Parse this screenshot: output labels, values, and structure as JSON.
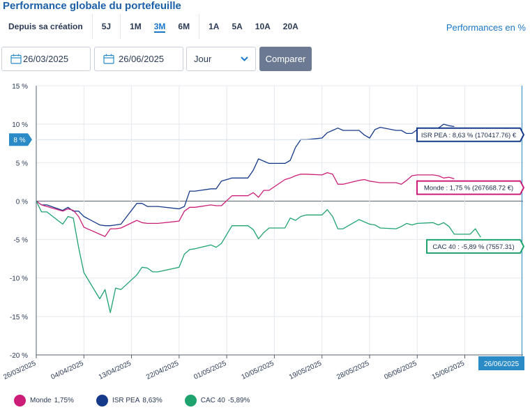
{
  "title": "Performance globale du portefeuille",
  "periods": [
    {
      "label": "Depuis sa création",
      "group": 0
    },
    {
      "label": "5J",
      "group": 1
    },
    {
      "label": "1M",
      "group": 2
    },
    {
      "label": "3M",
      "group": 2,
      "active": true
    },
    {
      "label": "6M",
      "group": 2
    },
    {
      "label": "1A",
      "group": 3
    },
    {
      "label": "5A",
      "group": 3
    },
    {
      "label": "10A",
      "group": 3
    },
    {
      "label": "20A",
      "group": 3
    }
  ],
  "perf_unit": "Performances en %",
  "date_start": "26/03/2025",
  "date_end": "26/06/2025",
  "granularity": "Jour",
  "compare_label": "Comparer",
  "hover_y_label": "8 %",
  "hover_x_label": "26/06/2025",
  "colors": {
    "monde": "#cc1e79",
    "isr": "#163a8a",
    "cac": "#1ea36f",
    "accent": "#2a8bc7"
  },
  "legend": [
    {
      "name": "Monde",
      "value": "1,75%",
      "color": "#cc1e79"
    },
    {
      "name": "ISR PEA",
      "value": "8,63%",
      "color": "#163a8a"
    },
    {
      "name": "CAC 40",
      "value": "-5,89%",
      "color": "#1ea36f"
    }
  ],
  "chart_data": {
    "type": "line",
    "ylim": [
      -20,
      15
    ],
    "yticks": [
      15,
      10,
      5,
      0,
      -5,
      -10,
      -15,
      -20
    ],
    "ytick_labels": [
      "15 %",
      "10 %",
      "5 %",
      "0 %",
      "-5 %",
      "-10 %",
      "-15 %",
      "-20 %"
    ],
    "xlim": [
      "2025-03-26",
      "2025-06-26"
    ],
    "xticks": [
      "2025-03-26",
      "2025-04-04",
      "2025-04-13",
      "2025-04-22",
      "2025-05-01",
      "2025-05-10",
      "2025-05-19",
      "2025-05-28",
      "2025-06-06",
      "2025-06-15"
    ],
    "xtick_labels": [
      "26/03/2025",
      "04/04/2025",
      "13/04/2025",
      "22/04/2025",
      "01/05/2025",
      "10/05/2025",
      "19/05/2025",
      "28/05/2025",
      "06/06/2025",
      "15/06/2025"
    ],
    "series": [
      {
        "name": "ISR PEA",
        "color": "#163a8a",
        "label": "ISR PEA : 8,63 % (170417.76) €",
        "label_value": 8.63,
        "dates": [
          "2025-03-26",
          "2025-03-27",
          "2025-03-28",
          "2025-03-31",
          "2025-04-01",
          "2025-04-02",
          "2025-04-03",
          "2025-04-04",
          "2025-04-07",
          "2025-04-08",
          "2025-04-09",
          "2025-04-10",
          "2025-04-11",
          "2025-04-14",
          "2025-04-15",
          "2025-04-16",
          "2025-04-17",
          "2025-04-18",
          "2025-04-22",
          "2025-04-23",
          "2025-04-24",
          "2025-04-25",
          "2025-04-28",
          "2025-04-29",
          "2025-04-30",
          "2025-05-02",
          "2025-05-05",
          "2025-05-06",
          "2025-05-07",
          "2025-05-08",
          "2025-05-09",
          "2025-05-12",
          "2025-05-13",
          "2025-05-14",
          "2025-05-15",
          "2025-05-16",
          "2025-05-19",
          "2025-05-20",
          "2025-05-21",
          "2025-05-22",
          "2025-05-23",
          "2025-05-26",
          "2025-05-27",
          "2025-05-28",
          "2025-05-29",
          "2025-05-30",
          "2025-06-02",
          "2025-06-03",
          "2025-06-04",
          "2025-06-05",
          "2025-06-06",
          "2025-06-09",
          "2025-06-10",
          "2025-06-11",
          "2025-06-12",
          "2025-06-13"
        ],
        "values": [
          0,
          -0.5,
          -0.5,
          -1.2,
          -0.8,
          -1.3,
          -1.3,
          -2.0,
          -3.1,
          -3.2,
          -3.2,
          -3.1,
          -3.0,
          -0.3,
          -0.3,
          -0.7,
          -0.7,
          -0.7,
          -1.0,
          -0.7,
          1.3,
          1.3,
          1.6,
          1.6,
          2.6,
          3.0,
          3.0,
          4.0,
          5.5,
          5.2,
          4.9,
          4.9,
          5.3,
          7.0,
          8.0,
          8.0,
          8.2,
          8.9,
          9.2,
          9.5,
          9.2,
          9.2,
          8.6,
          8.2,
          9.3,
          9.6,
          9.2,
          9.2,
          8.8,
          8.8,
          9.3,
          9.5,
          9.5,
          10.0,
          9.8,
          9.7
        ]
      },
      {
        "name": "Monde",
        "color": "#cc1e79",
        "label": "Monde : 1,75 % (267668.72 €)",
        "label_value": 1.75,
        "dates": [
          "2025-03-26",
          "2025-03-27",
          "2025-03-28",
          "2025-03-31",
          "2025-04-01",
          "2025-04-02",
          "2025-04-03",
          "2025-04-04",
          "2025-04-07",
          "2025-04-08",
          "2025-04-09",
          "2025-04-10",
          "2025-04-11",
          "2025-04-14",
          "2025-04-15",
          "2025-04-16",
          "2025-04-17",
          "2025-04-18",
          "2025-04-22",
          "2025-04-23",
          "2025-04-24",
          "2025-04-25",
          "2025-04-28",
          "2025-04-29",
          "2025-04-30",
          "2025-05-02",
          "2025-05-05",
          "2025-05-06",
          "2025-05-07",
          "2025-05-08",
          "2025-05-09",
          "2025-05-12",
          "2025-05-13",
          "2025-05-14",
          "2025-05-15",
          "2025-05-16",
          "2025-05-19",
          "2025-05-20",
          "2025-05-21",
          "2025-05-22",
          "2025-05-23",
          "2025-05-26",
          "2025-05-27",
          "2025-05-28",
          "2025-05-29",
          "2025-05-30",
          "2025-06-02",
          "2025-06-03",
          "2025-06-04",
          "2025-06-05",
          "2025-06-06",
          "2025-06-09",
          "2025-06-10",
          "2025-06-11",
          "2025-06-12",
          "2025-06-13"
        ],
        "values": [
          0,
          -0.5,
          -0.7,
          -1.3,
          -1.0,
          -1.2,
          -2.0,
          -3.4,
          -4.3,
          -4.6,
          -3.6,
          -3.6,
          -3.5,
          -2.5,
          -2.8,
          -2.9,
          -2.9,
          -2.9,
          -2.6,
          -1.3,
          -0.8,
          -0.8,
          -0.5,
          -0.6,
          -0.6,
          0.7,
          0.7,
          1.1,
          0.5,
          1.4,
          1.4,
          2.8,
          3.0,
          3.3,
          3.5,
          3.5,
          3.4,
          3.7,
          3.5,
          2.2,
          2.2,
          2.7,
          2.8,
          2.6,
          2.5,
          2.4,
          2.4,
          2.2,
          2.7,
          3.3,
          3.4,
          3.4,
          3.3,
          3.0,
          3.1,
          2.9
        ]
      },
      {
        "name": "CAC 40",
        "color": "#1ea36f",
        "label": "CAC 40 : -5,89 % (7557.31)",
        "label_value": -5.89,
        "dates": [
          "2025-03-26",
          "2025-03-27",
          "2025-03-28",
          "2025-03-31",
          "2025-04-01",
          "2025-04-02",
          "2025-04-03",
          "2025-04-04",
          "2025-04-07",
          "2025-04-08",
          "2025-04-09",
          "2025-04-10",
          "2025-04-11",
          "2025-04-14",
          "2025-04-15",
          "2025-04-16",
          "2025-04-17",
          "2025-04-18",
          "2025-04-22",
          "2025-04-23",
          "2025-04-24",
          "2025-04-25",
          "2025-04-28",
          "2025-04-29",
          "2025-04-30",
          "2025-05-02",
          "2025-05-05",
          "2025-05-06",
          "2025-05-07",
          "2025-05-08",
          "2025-05-09",
          "2025-05-12",
          "2025-05-13",
          "2025-05-14",
          "2025-05-15",
          "2025-05-16",
          "2025-05-19",
          "2025-05-20",
          "2025-05-21",
          "2025-05-22",
          "2025-05-23",
          "2025-05-26",
          "2025-05-27",
          "2025-05-28",
          "2025-05-29",
          "2025-05-30",
          "2025-06-02",
          "2025-06-03",
          "2025-06-04",
          "2025-06-05",
          "2025-06-06",
          "2025-06-09",
          "2025-06-10",
          "2025-06-11",
          "2025-06-12",
          "2025-06-13",
          "2025-06-16",
          "2025-06-17",
          "2025-06-18"
        ],
        "values": [
          0,
          -1.4,
          -1.4,
          -3.0,
          -2.0,
          -2.2,
          -6.0,
          -9.3,
          -12.7,
          -11.5,
          -14.5,
          -11.3,
          -11.5,
          -9.6,
          -8.6,
          -8.7,
          -9.2,
          -9.2,
          -8.6,
          -6.9,
          -6.3,
          -6.2,
          -5.7,
          -6.0,
          -5.5,
          -3.2,
          -3.2,
          -3.7,
          -4.9,
          -4.1,
          -3.5,
          -3.5,
          -2.2,
          -2.5,
          -2.0,
          -1.8,
          -1.8,
          -1.1,
          -2.0,
          -3.6,
          -3.6,
          -2.4,
          -2.7,
          -3.0,
          -3.1,
          -3.5,
          -3.6,
          -3.3,
          -2.9,
          -3.1,
          -2.9,
          -2.8,
          -3.1,
          -2.8,
          -3.3,
          -4.3,
          -4.3,
          -3.6,
          -4.7
        ]
      }
    ]
  }
}
